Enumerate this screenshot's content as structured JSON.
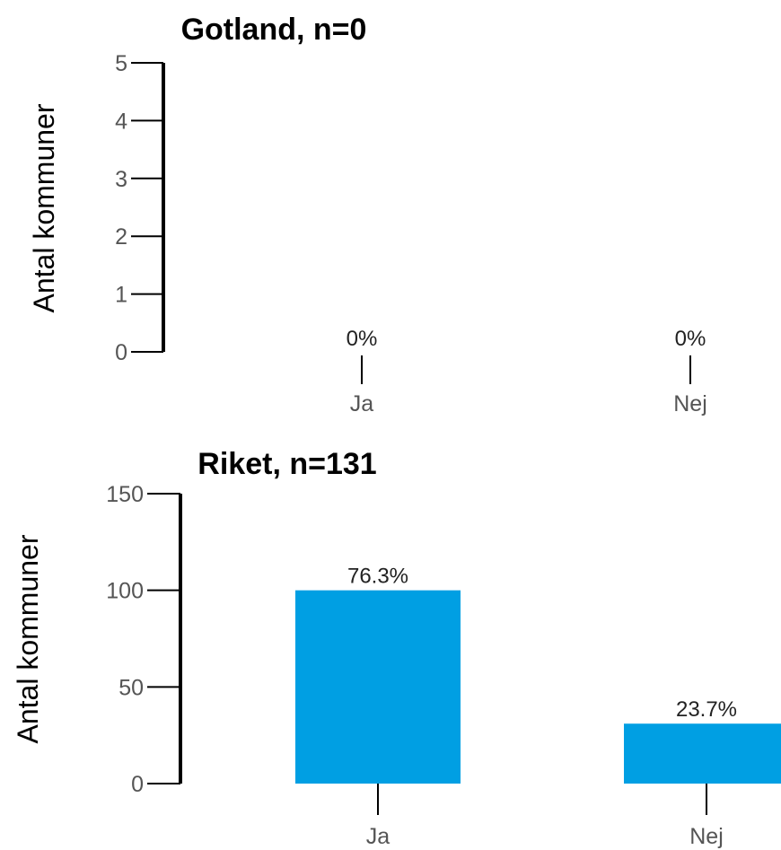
{
  "chart_data": [
    {
      "type": "bar",
      "title": "Gotland, n=0",
      "ylabel": "Antal kommuner",
      "xlabel": "",
      "categories": [
        "Ja",
        "Nej"
      ],
      "values": [
        0,
        0
      ],
      "data_labels": [
        "0%",
        "0%"
      ],
      "ylim": [
        0,
        5
      ],
      "yticks": [
        "0",
        "1",
        "2",
        "3",
        "4",
        "5"
      ],
      "grid": false,
      "bar_color": "#009fe3"
    },
    {
      "type": "bar",
      "title": "Riket, n=131",
      "ylabel": "Antal kommuner",
      "xlabel": "",
      "categories": [
        "Ja",
        "Nej"
      ],
      "values": [
        100,
        31
      ],
      "data_labels": [
        "76.3%",
        "23.7%"
      ],
      "ylim": [
        0,
        150
      ],
      "yticks": [
        "0",
        "50",
        "100",
        "150"
      ],
      "grid": false,
      "bar_color": "#009fe3"
    }
  ]
}
